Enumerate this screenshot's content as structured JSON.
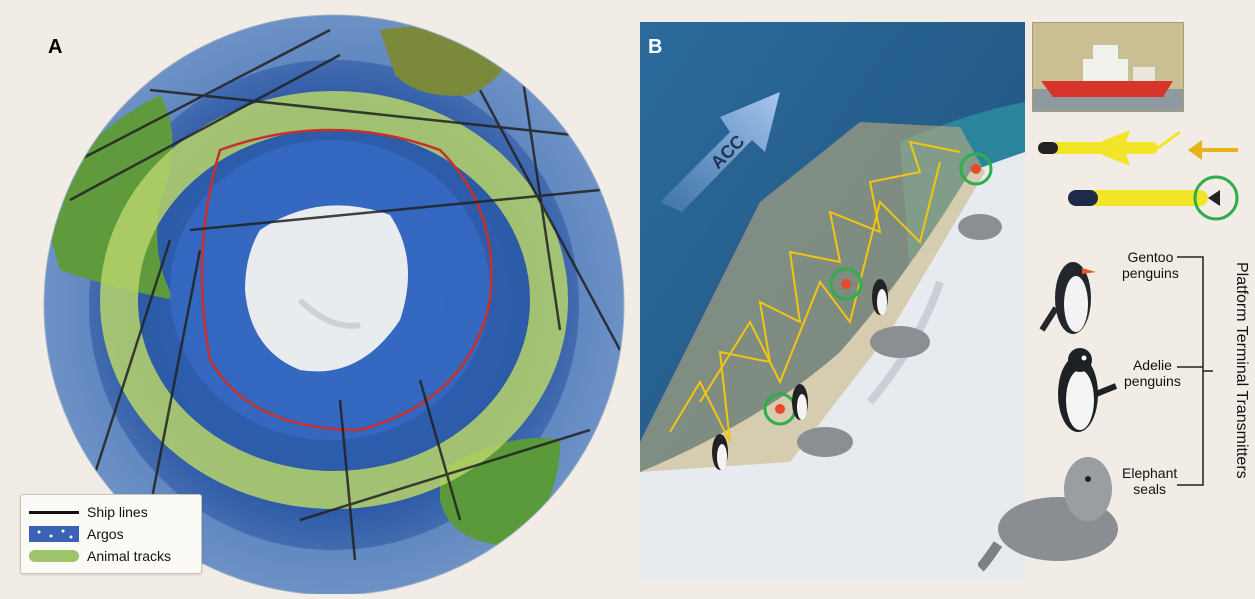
{
  "panel_a": {
    "letter": "A",
    "legend": [
      {
        "label": "Ship lines",
        "swatch": "ship",
        "color": "#111111"
      },
      {
        "label": "Argos",
        "swatch": "argos",
        "color": "#3a63b6"
      },
      {
        "label": "Animal tracks",
        "swatch": "animal",
        "color": "#9cc46a"
      }
    ]
  },
  "panel_b": {
    "letter": "B",
    "current_label": "ACC",
    "track_color": "#f2c50f",
    "transmitter_ring_color": "#2fae4c"
  },
  "platforms": {
    "gentoo": "Gentoo\npenguins",
    "adelie": "Adelie\npenguins",
    "seals": "Elephant\nseals",
    "group_title": "Platform Terminal Transmitters"
  },
  "colors": {
    "ocean": "#2c5fa8",
    "land_green": "#5f9a3c",
    "ice": "#e9ecef",
    "ship_hull": "#d8352a"
  }
}
